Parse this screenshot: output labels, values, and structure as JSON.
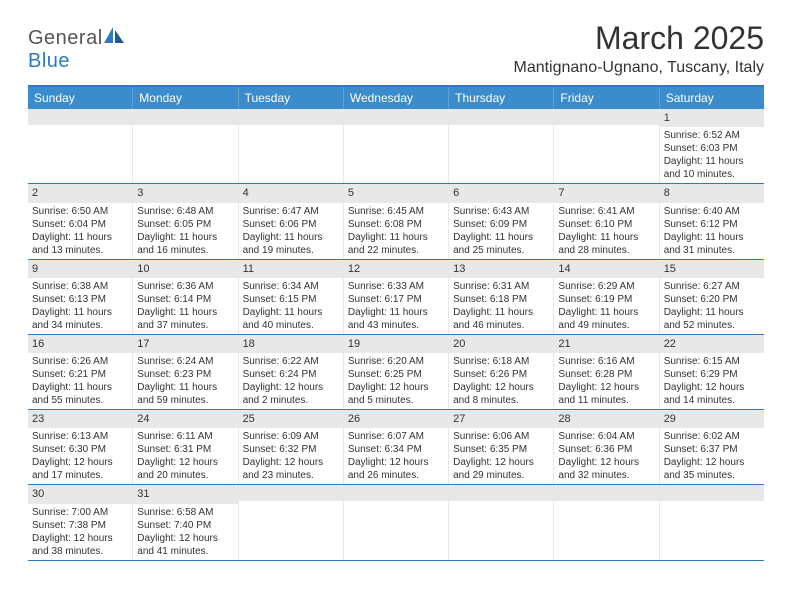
{
  "logo": {
    "text1": "General",
    "text2": "Blue"
  },
  "title": "March 2025",
  "location": "Mantignano-Ugnano, Tuscany, Italy",
  "weekdays": [
    "Sunday",
    "Monday",
    "Tuesday",
    "Wednesday",
    "Thursday",
    "Friday",
    "Saturday"
  ],
  "colors": {
    "header_bg": "#3a8ccc",
    "border": "#2e7bc0",
    "daynum_bg": "#e8e8e8"
  },
  "weeks": [
    [
      {
        "n": "",
        "lines": []
      },
      {
        "n": "",
        "lines": []
      },
      {
        "n": "",
        "lines": []
      },
      {
        "n": "",
        "lines": []
      },
      {
        "n": "",
        "lines": []
      },
      {
        "n": "",
        "lines": []
      },
      {
        "n": "1",
        "lines": [
          "Sunrise: 6:52 AM",
          "Sunset: 6:03 PM",
          "Daylight: 11 hours",
          "and 10 minutes."
        ]
      }
    ],
    [
      {
        "n": "2",
        "lines": [
          "Sunrise: 6:50 AM",
          "Sunset: 6:04 PM",
          "Daylight: 11 hours",
          "and 13 minutes."
        ]
      },
      {
        "n": "3",
        "lines": [
          "Sunrise: 6:48 AM",
          "Sunset: 6:05 PM",
          "Daylight: 11 hours",
          "and 16 minutes."
        ]
      },
      {
        "n": "4",
        "lines": [
          "Sunrise: 6:47 AM",
          "Sunset: 6:06 PM",
          "Daylight: 11 hours",
          "and 19 minutes."
        ]
      },
      {
        "n": "5",
        "lines": [
          "Sunrise: 6:45 AM",
          "Sunset: 6:08 PM",
          "Daylight: 11 hours",
          "and 22 minutes."
        ]
      },
      {
        "n": "6",
        "lines": [
          "Sunrise: 6:43 AM",
          "Sunset: 6:09 PM",
          "Daylight: 11 hours",
          "and 25 minutes."
        ]
      },
      {
        "n": "7",
        "lines": [
          "Sunrise: 6:41 AM",
          "Sunset: 6:10 PM",
          "Daylight: 11 hours",
          "and 28 minutes."
        ]
      },
      {
        "n": "8",
        "lines": [
          "Sunrise: 6:40 AM",
          "Sunset: 6:12 PM",
          "Daylight: 11 hours",
          "and 31 minutes."
        ]
      }
    ],
    [
      {
        "n": "9",
        "lines": [
          "Sunrise: 6:38 AM",
          "Sunset: 6:13 PM",
          "Daylight: 11 hours",
          "and 34 minutes."
        ]
      },
      {
        "n": "10",
        "lines": [
          "Sunrise: 6:36 AM",
          "Sunset: 6:14 PM",
          "Daylight: 11 hours",
          "and 37 minutes."
        ]
      },
      {
        "n": "11",
        "lines": [
          "Sunrise: 6:34 AM",
          "Sunset: 6:15 PM",
          "Daylight: 11 hours",
          "and 40 minutes."
        ]
      },
      {
        "n": "12",
        "lines": [
          "Sunrise: 6:33 AM",
          "Sunset: 6:17 PM",
          "Daylight: 11 hours",
          "and 43 minutes."
        ]
      },
      {
        "n": "13",
        "lines": [
          "Sunrise: 6:31 AM",
          "Sunset: 6:18 PM",
          "Daylight: 11 hours",
          "and 46 minutes."
        ]
      },
      {
        "n": "14",
        "lines": [
          "Sunrise: 6:29 AM",
          "Sunset: 6:19 PM",
          "Daylight: 11 hours",
          "and 49 minutes."
        ]
      },
      {
        "n": "15",
        "lines": [
          "Sunrise: 6:27 AM",
          "Sunset: 6:20 PM",
          "Daylight: 11 hours",
          "and 52 minutes."
        ]
      }
    ],
    [
      {
        "n": "16",
        "lines": [
          "Sunrise: 6:26 AM",
          "Sunset: 6:21 PM",
          "Daylight: 11 hours",
          "and 55 minutes."
        ]
      },
      {
        "n": "17",
        "lines": [
          "Sunrise: 6:24 AM",
          "Sunset: 6:23 PM",
          "Daylight: 11 hours",
          "and 59 minutes."
        ]
      },
      {
        "n": "18",
        "lines": [
          "Sunrise: 6:22 AM",
          "Sunset: 6:24 PM",
          "Daylight: 12 hours",
          "and 2 minutes."
        ]
      },
      {
        "n": "19",
        "lines": [
          "Sunrise: 6:20 AM",
          "Sunset: 6:25 PM",
          "Daylight: 12 hours",
          "and 5 minutes."
        ]
      },
      {
        "n": "20",
        "lines": [
          "Sunrise: 6:18 AM",
          "Sunset: 6:26 PM",
          "Daylight: 12 hours",
          "and 8 minutes."
        ]
      },
      {
        "n": "21",
        "lines": [
          "Sunrise: 6:16 AM",
          "Sunset: 6:28 PM",
          "Daylight: 12 hours",
          "and 11 minutes."
        ]
      },
      {
        "n": "22",
        "lines": [
          "Sunrise: 6:15 AM",
          "Sunset: 6:29 PM",
          "Daylight: 12 hours",
          "and 14 minutes."
        ]
      }
    ],
    [
      {
        "n": "23",
        "lines": [
          "Sunrise: 6:13 AM",
          "Sunset: 6:30 PM",
          "Daylight: 12 hours",
          "and 17 minutes."
        ]
      },
      {
        "n": "24",
        "lines": [
          "Sunrise: 6:11 AM",
          "Sunset: 6:31 PM",
          "Daylight: 12 hours",
          "and 20 minutes."
        ]
      },
      {
        "n": "25",
        "lines": [
          "Sunrise: 6:09 AM",
          "Sunset: 6:32 PM",
          "Daylight: 12 hours",
          "and 23 minutes."
        ]
      },
      {
        "n": "26",
        "lines": [
          "Sunrise: 6:07 AM",
          "Sunset: 6:34 PM",
          "Daylight: 12 hours",
          "and 26 minutes."
        ]
      },
      {
        "n": "27",
        "lines": [
          "Sunrise: 6:06 AM",
          "Sunset: 6:35 PM",
          "Daylight: 12 hours",
          "and 29 minutes."
        ]
      },
      {
        "n": "28",
        "lines": [
          "Sunrise: 6:04 AM",
          "Sunset: 6:36 PM",
          "Daylight: 12 hours",
          "and 32 minutes."
        ]
      },
      {
        "n": "29",
        "lines": [
          "Sunrise: 6:02 AM",
          "Sunset: 6:37 PM",
          "Daylight: 12 hours",
          "and 35 minutes."
        ]
      }
    ],
    [
      {
        "n": "30",
        "lines": [
          "Sunrise: 7:00 AM",
          "Sunset: 7:38 PM",
          "Daylight: 12 hours",
          "and 38 minutes."
        ]
      },
      {
        "n": "31",
        "lines": [
          "Sunrise: 6:58 AM",
          "Sunset: 7:40 PM",
          "Daylight: 12 hours",
          "and 41 minutes."
        ]
      },
      {
        "n": "",
        "lines": []
      },
      {
        "n": "",
        "lines": []
      },
      {
        "n": "",
        "lines": []
      },
      {
        "n": "",
        "lines": []
      },
      {
        "n": "",
        "lines": []
      }
    ]
  ]
}
